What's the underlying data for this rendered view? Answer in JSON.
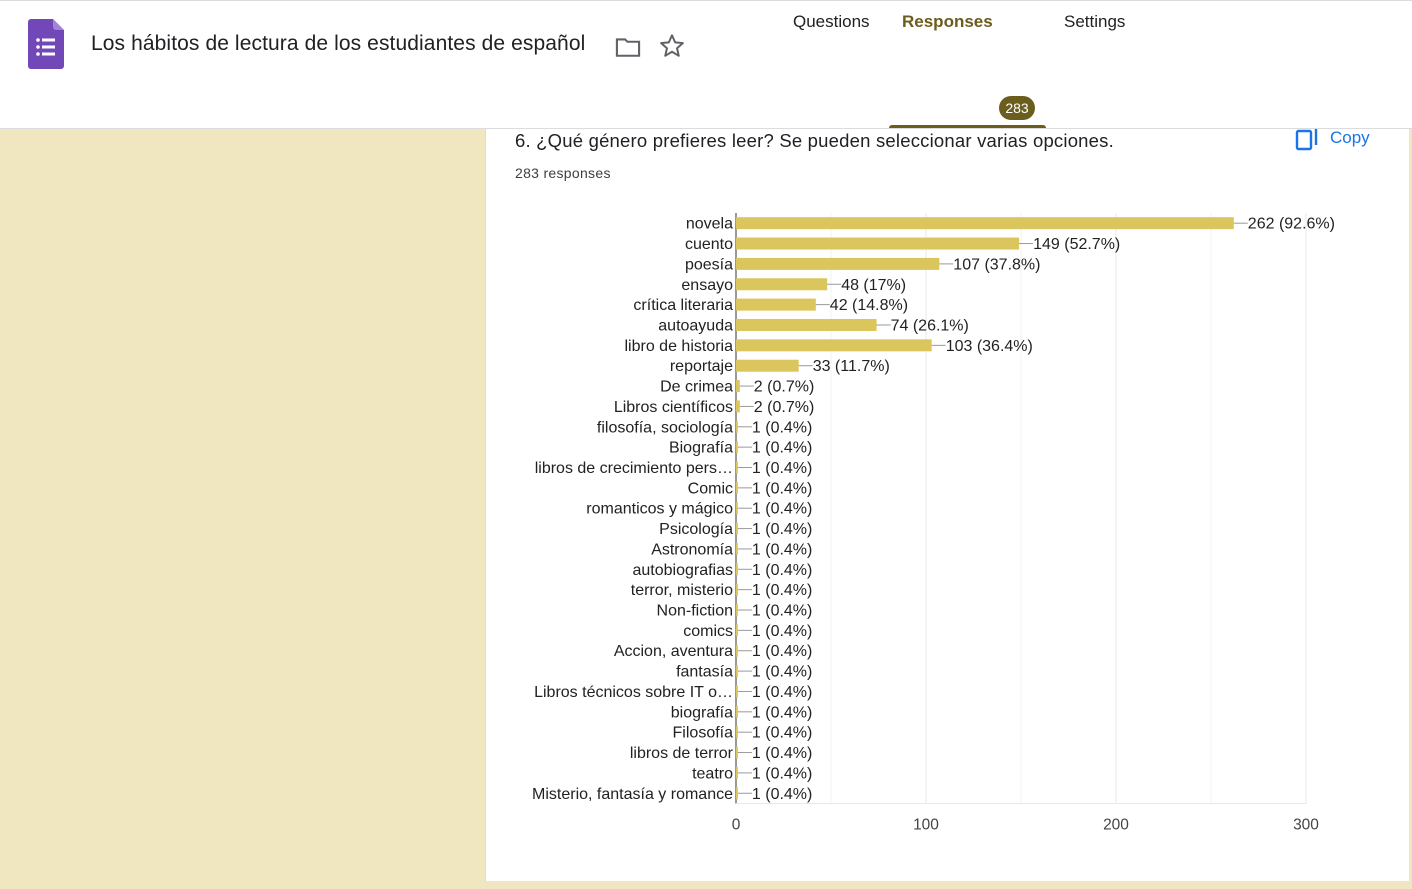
{
  "header": {
    "title": "Los hábitos de lectura de los estudiantes de español",
    "icons": {
      "logo": "google-forms-icon",
      "folder": "folder-icon",
      "star": "star-icon"
    },
    "tabs": [
      {
        "label": "Questions"
      },
      {
        "label": "Responses",
        "badge": "283",
        "active": true
      },
      {
        "label": "Settings"
      }
    ]
  },
  "question": {
    "title": "6. ¿Qué género prefieres leer? Se pueden seleccionar varias opciones.",
    "responses_label": "283 responses",
    "copy_label": "Copy"
  },
  "colors": {
    "accent": "#6b5d1e",
    "bar": "#dac65c",
    "background": "#f0e7c0",
    "link": "#1a73e8"
  },
  "chart_data": {
    "type": "bar",
    "orientation": "horizontal",
    "categories": [
      "novela",
      "cuento",
      "poesía",
      "ensayo",
      "crítica literaria",
      "autoayuda",
      "libro de historia",
      "reportaje",
      "De crimea",
      "Libros científicos",
      "filosofía, sociología",
      "Biografía",
      "libros de crecimiento pers…",
      "Comic",
      "romanticos y mágico",
      "Psicología",
      "Astronomía",
      "autobiografias",
      "terror, misterio",
      "Non-fiction",
      "comics",
      "Accion, aventura",
      "fantasía",
      "Libros técnicos sobre IT o…",
      "biografía",
      "Filosofía",
      "libros de terror",
      "teatro",
      "Misterio, fantasía y romance"
    ],
    "values": [
      262,
      149,
      107,
      48,
      42,
      74,
      103,
      33,
      2,
      2,
      1,
      1,
      1,
      1,
      1,
      1,
      1,
      1,
      1,
      1,
      1,
      1,
      1,
      1,
      1,
      1,
      1,
      1,
      1
    ],
    "data_labels": [
      "262 (92.6%)",
      "149 (52.7%)",
      "107 (37.8%)",
      "48 (17%)",
      "42 (14.8%)",
      "74 (26.1%)",
      "103 (36.4%)",
      "33 (11.7%)",
      "2 (0.7%)",
      "2 (0.7%)",
      "1 (0.4%)",
      "1 (0.4%)",
      "1 (0.4%)",
      "1 (0.4%)",
      "1 (0.4%)",
      "1 (0.4%)",
      "1 (0.4%)",
      "1 (0.4%)",
      "1 (0.4%)",
      "1 (0.4%)",
      "1 (0.4%)",
      "1 (0.4%)",
      "1 (0.4%)",
      "1 (0.4%)",
      "1 (0.4%)",
      "1 (0.4%)",
      "1 (0.4%)",
      "1 (0.4%)",
      "1 (0.4%)"
    ],
    "xlim": [
      0,
      300
    ],
    "xticks": [
      "0",
      "100",
      "200",
      "300"
    ],
    "grid": true
  }
}
